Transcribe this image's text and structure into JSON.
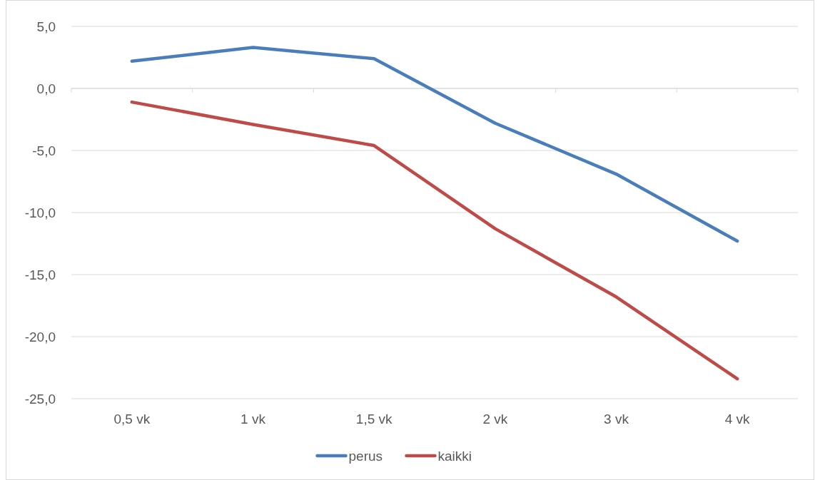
{
  "chart_data": {
    "type": "line",
    "categories": [
      "0,5 vk",
      "1 vk",
      "1,5 vk",
      "2 vk",
      "3 vk",
      "4 vk"
    ],
    "series": [
      {
        "name": "perus",
        "color": "#4a7ebb",
        "values": [
          2.2,
          3.3,
          2.4,
          -2.8,
          -6.9,
          -12.3
        ]
      },
      {
        "name": "kaikki",
        "color": "#be4b48",
        "values": [
          -1.1,
          -2.9,
          -4.6,
          -11.3,
          -16.8,
          -23.4
        ]
      }
    ],
    "ylim": [
      -25,
      5
    ],
    "yticks": [
      {
        "value": 5,
        "label": "5,0"
      },
      {
        "value": 0,
        "label": "0,0"
      },
      {
        "value": -5,
        "label": "-5,0"
      },
      {
        "value": -10,
        "label": "-10,0"
      },
      {
        "value": -15,
        "label": "-15,0"
      },
      {
        "value": -20,
        "label": "-20,0"
      },
      {
        "value": -25,
        "label": "-25,0"
      }
    ],
    "grid": "y",
    "legend": "bottom",
    "marker": "none",
    "line_style": "solid"
  }
}
